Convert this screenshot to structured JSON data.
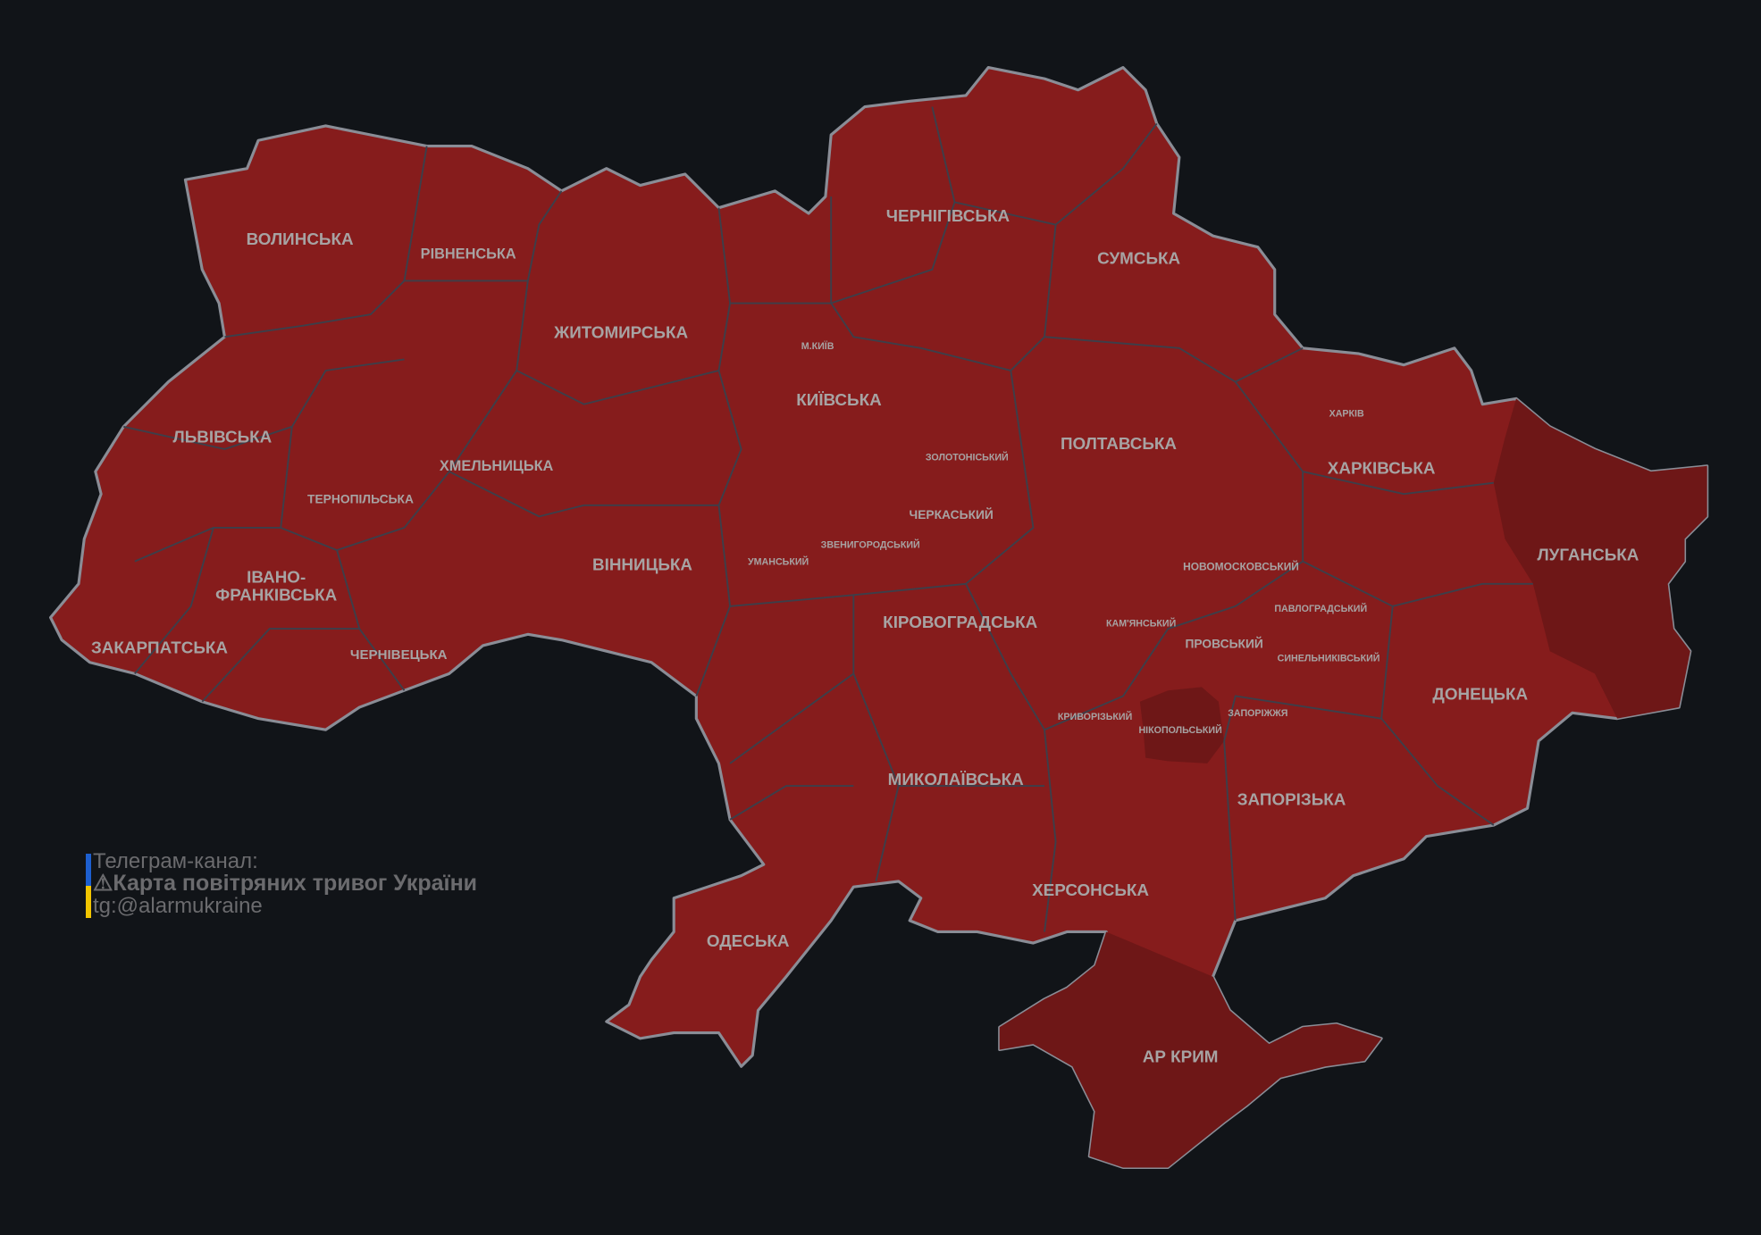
{
  "colors": {
    "background": "#111418",
    "alert": "#861c1c",
    "alert_dark": "#6e1717",
    "border": "#3c3f4a",
    "outline": "#8a8d96",
    "label": "#a7a3a3"
  },
  "oblasts": [
    "ВОЛИНСЬКА",
    "РІВНЕНСЬКА",
    "ЖИТОМИРСЬКА",
    "ЧЕРНІГІВСЬКА",
    "СУМСЬКА",
    "КИЇВСЬКА",
    "ЛЬВІВСЬКА",
    "ХМЕЛЬНИЦЬКА",
    "ТЕРНОПІЛЬСЬКА",
    "ІВАНО-",
    "ФРАНКІВСЬКА",
    "ЗАКАРПАТСЬКА",
    "ЧЕРНІВЕЦЬКА",
    "ВІННИЦЬКА",
    "ПОЛТАВСЬКА",
    "ХАРКІВСЬКА",
    "ЛУГАНСЬКА",
    "ДОНЕЦЬКА",
    "КІРОВОГРАДСЬКА",
    "МИКОЛАЇВСЬКА",
    "ЗАПОРІЗЬКА",
    "ХЕРСОНСЬКА",
    "ОДЕСЬКА",
    "АР КРИМ"
  ],
  "raions": [
    "М.КИЇВ",
    "ЗОЛОТОНІСЬКИЙ",
    "ЧЕРКАСЬКИЙ",
    "УМАНСЬКИЙ",
    "ЗВЕНИГОРОДСЬКИЙ",
    "ХАРКІВ",
    "НОВОМОСКОВСЬКИЙ",
    "ПАВЛОГРАДСЬКИЙ",
    "КАМ'ЯНСЬКИЙ",
    "ПРОВСЬКИЙ",
    "СИНЕЛЬНИКІВСЬКИЙ",
    "КРИВОРІЗЬКИЙ",
    "НІКОПОЛЬСЬКИЙ",
    "ЗАПОРІЖЖЯ"
  ],
  "credit": {
    "line1": "Телеграм-канал:",
    "icon": "warning-icon",
    "warning": "⚠",
    "line2": "Карта повітряних тривог України",
    "line3": "tg:@alarmukraine"
  }
}
